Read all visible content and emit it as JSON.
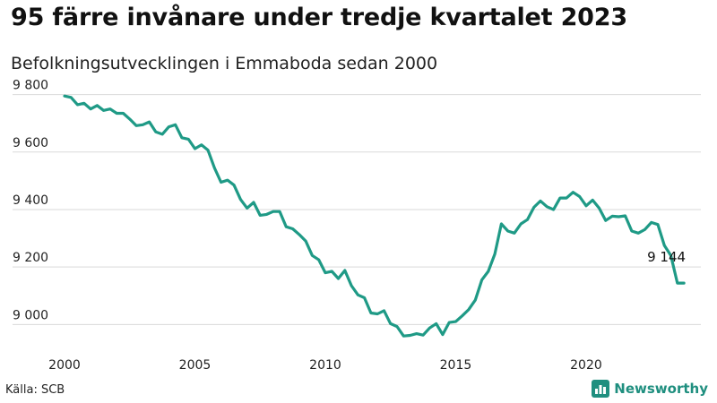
{
  "header": {
    "title": "95 färre invånare under tredje kvartalet 2023",
    "subtitle": "Befolkningsutvecklingen i Emmaboda sedan 2000"
  },
  "footer": {
    "source": "Källa: SCB",
    "brand": "Newsworthy"
  },
  "colors": {
    "line": "#1f9a86",
    "grid": "#d9d9d9",
    "brand": "#1f8f7f"
  },
  "chart_data": {
    "type": "line",
    "title": "95 färre invånare under tredje kvartalet 2023",
    "subtitle": "Befolkningsutvecklingen i Emmaboda sedan 2000",
    "xlabel": "",
    "ylabel": "",
    "xlim": [
      2000,
      2024.4
    ],
    "ylim": [
      8920,
      9830
    ],
    "grid": "horizontal",
    "x_ticks": [
      2000,
      2005,
      2010,
      2015,
      2020
    ],
    "x_tick_labels": [
      "2000",
      "2005",
      "2010",
      "2015",
      "2020"
    ],
    "y_ticks": [
      9000,
      9200,
      9400,
      9600,
      9800
    ],
    "y_tick_labels": [
      "9 000",
      "9 200",
      "9 400",
      "9 600",
      "9 800"
    ],
    "end_label": "9 144",
    "series": [
      {
        "x": [
          2000.0,
          2000.25,
          2000.5,
          2000.75,
          2001.0,
          2001.25,
          2001.5,
          2001.75,
          2002.0,
          2002.25,
          2002.5,
          2002.75,
          2003.0,
          2003.25,
          2003.5,
          2003.75,
          2004.0,
          2004.25,
          2004.5,
          2004.75,
          2005.0,
          2005.25,
          2005.5,
          2005.75,
          2006.0,
          2006.25,
          2006.5,
          2006.75,
          2007.0,
          2007.25,
          2007.5,
          2007.75,
          2008.0,
          2008.25,
          2008.5,
          2008.75,
          2009.0,
          2009.25,
          2009.5,
          2009.75,
          2010.0,
          2010.25,
          2010.5,
          2010.75,
          2011.0,
          2011.25,
          2011.5,
          2011.75,
          2012.0,
          2012.25,
          2012.5,
          2012.75,
          2013.0,
          2013.25,
          2013.5,
          2013.75,
          2014.0,
          2014.25,
          2014.5,
          2014.75,
          2015.0,
          2015.25,
          2015.5,
          2015.75,
          2016.0,
          2016.25,
          2016.5,
          2016.75,
          2017.0,
          2017.25,
          2017.5,
          2017.75,
          2018.0,
          2018.25,
          2018.5,
          2018.75,
          2019.0,
          2019.25,
          2019.5,
          2019.75,
          2020.0,
          2020.25,
          2020.5,
          2020.75,
          2021.0,
          2021.25,
          2021.5,
          2021.75,
          2022.0,
          2022.25,
          2022.5,
          2022.75,
          2023.0,
          2023.25,
          2023.5,
          2023.75
        ],
        "values": [
          9795,
          9790,
          9765,
          9770,
          9750,
          9762,
          9745,
          9750,
          9735,
          9735,
          9715,
          9692,
          9695,
          9705,
          9670,
          9662,
          9688,
          9695,
          9650,
          9645,
          9612,
          9625,
          9607,
          9545,
          9495,
          9502,
          9485,
          9435,
          9405,
          9425,
          9380,
          9383,
          9393,
          9393,
          9340,
          9333,
          9313,
          9290,
          9240,
          9225,
          9180,
          9185,
          9160,
          9188,
          9135,
          9103,
          9093,
          9040,
          9037,
          9048,
          9003,
          8993,
          8960,
          8962,
          8968,
          8963,
          8988,
          9003,
          8965,
          9007,
          9010,
          9030,
          9052,
          9085,
          9155,
          9185,
          9245,
          9350,
          9325,
          9318,
          9350,
          9365,
          9408,
          9430,
          9410,
          9400,
          9440,
          9440,
          9460,
          9445,
          9413,
          9433,
          9405,
          9362,
          9377,
          9375,
          9378,
          9325,
          9318,
          9330,
          9355,
          9348,
          9275,
          9240,
          9144,
          9144
        ]
      }
    ]
  }
}
